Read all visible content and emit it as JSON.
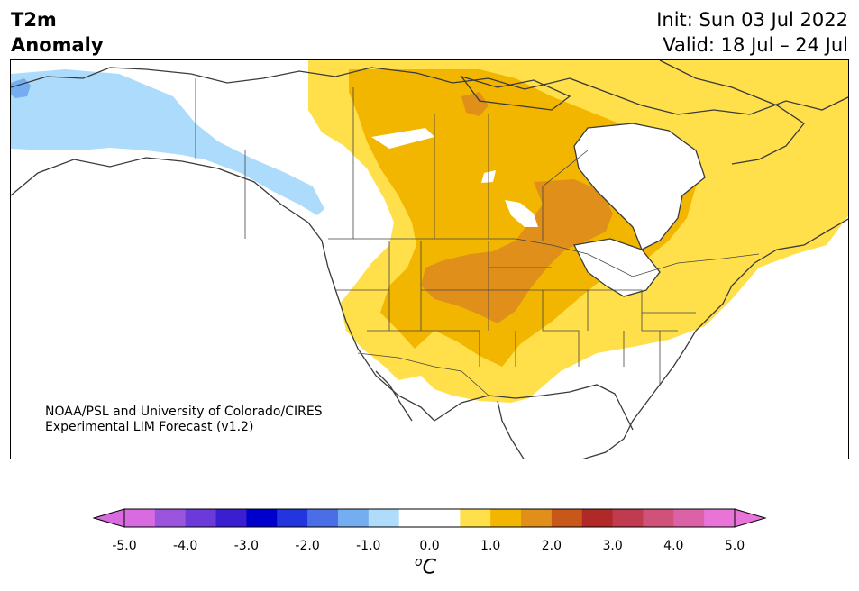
{
  "title": {
    "left_line1": "T2m",
    "left_line2": "Anomaly",
    "init": "Init: Sun 03 Jul 2022",
    "valid": "Valid: 18 Jul – 24 Jul"
  },
  "credit": {
    "line1": "NOAA/PSL and University of Colorado/CIRES",
    "line2": "Experimental LIM Forecast (v1.2)"
  },
  "colorbar": {
    "unit_sup": "o",
    "unit": "C",
    "tick_labels": [
      "-5.0",
      "-4.0",
      "-3.0",
      "-2.0",
      "-1.0",
      "0.0",
      "1.0",
      "2.0",
      "3.0",
      "4.0",
      "5.0"
    ],
    "colors": [
      "#d96be0",
      "#9b55dc",
      "#6b3ad8",
      "#3a1fd0",
      "#0000cc",
      "#2335dc",
      "#4a6ee6",
      "#74aef0",
      "#aedcfa",
      "#ffffff",
      "#ffffff",
      "#ffe04a",
      "#f2b600",
      "#e0901a",
      "#c8581a",
      "#b02828",
      "#c03a50",
      "#d0527a",
      "#dc62a8",
      "#e874d8"
    ]
  },
  "colors": {
    "cool_light": "#acdbfc",
    "cool_mid": "#74aef0",
    "warm_1": "#ffe04a",
    "warm_2": "#f2b600",
    "warm_3": "#e0901a"
  }
}
